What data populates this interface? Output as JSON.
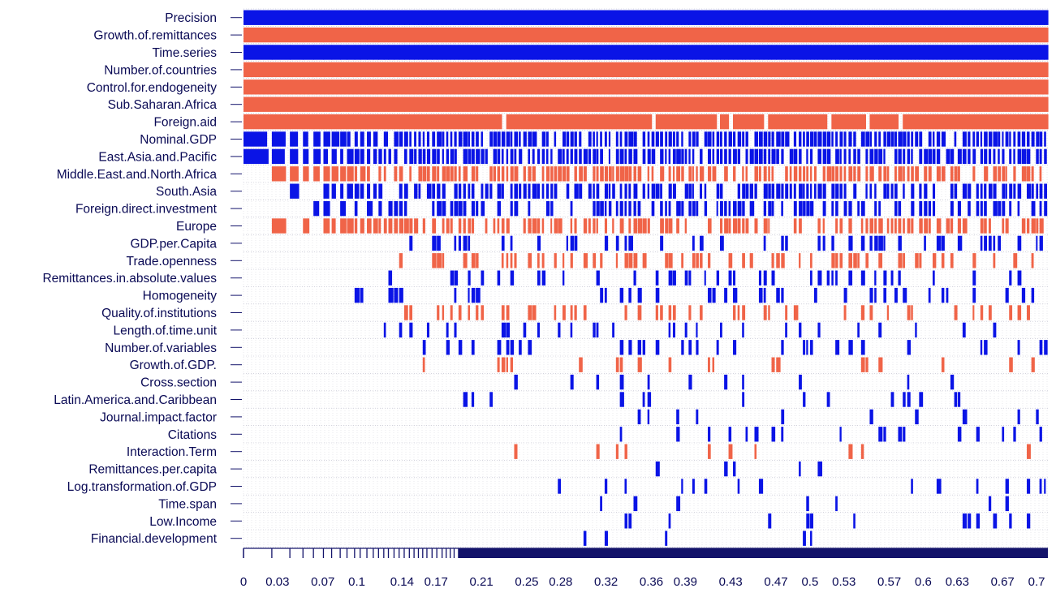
{
  "chart_data": {
    "type": "heatmap",
    "title": "",
    "xlabel": "",
    "ylabel": "",
    "description_colors": {
      "positive": "#0a14e6",
      "negative": "#f06448",
      "axis": "#13136a"
    },
    "variables": [
      "Precision",
      "Growth.of.remittances",
      "Time.series",
      "Number.of.countries",
      "Control.for.endogeneity",
      "Sub.Saharan.Africa",
      "Foreign.aid",
      "Nominal.GDP",
      "East.Asia.and.Pacific",
      "Middle.East.and.North.Africa",
      "South.Asia",
      "Foreign.direct.investment",
      "Europe",
      "GDP.per.Capita",
      "Trade.openness",
      "Remittances.in.absolute.values",
      "Homogeneity",
      "Quality.of.institutions",
      "Length.of.time.unit",
      "Number.of.variables",
      "Growth.of.GDP.",
      "Cross.section",
      "Latin.America.and.Caribbean",
      "Journal.impact.factor",
      "Citations",
      "Interaction.Term",
      "Remittances.per.capita",
      "Log.transformation.of.GDP",
      "Time.span",
      "Low.Income",
      "Financial.development"
    ],
    "x_tick_labels": [
      "0",
      "0.03",
      "0.07",
      "0.1",
      "0.14",
      "0.17",
      "0.21",
      "0.25",
      "0.28",
      "0.32",
      "0.36",
      "0.39",
      "0.43",
      "0.47",
      "0.5",
      "0.53",
      "0.57",
      "0.6",
      "0.63",
      "0.67",
      "0.7"
    ],
    "x_ticks": [
      0,
      0.03,
      0.07,
      0.1,
      0.14,
      0.17,
      0.21,
      0.25,
      0.28,
      0.32,
      0.36,
      0.39,
      0.43,
      0.47,
      0.5,
      0.53,
      0.57,
      0.6,
      0.63,
      0.67,
      0.7
    ],
    "xlim": [
      0,
      0.71
    ],
    "inclusion_profile": [
      {
        "sign": "positive",
        "start": 0.0,
        "density": 1.0
      },
      {
        "sign": "negative",
        "start": 0.0,
        "density": 1.0
      },
      {
        "sign": "positive",
        "start": 0.0,
        "density": 1.0
      },
      {
        "sign": "negative",
        "start": 0.0,
        "density": 1.0
      },
      {
        "sign": "negative",
        "start": 0.0,
        "density": 1.0
      },
      {
        "sign": "negative",
        "start": 0.0,
        "density": 0.99
      },
      {
        "sign": "negative",
        "start": 0.0,
        "density": 0.95
      },
      {
        "sign": "positive",
        "start": 0.0,
        "density": 0.9
      },
      {
        "sign": "positive",
        "start": 0.0,
        "density": 0.82
      },
      {
        "sign": "negative",
        "start": 0.0,
        "density": 0.78
      },
      {
        "sign": "positive",
        "start": 0.0,
        "density": 0.7
      },
      {
        "sign": "positive",
        "start": 0.02,
        "density": 0.6
      },
      {
        "sign": "negative",
        "start": 0.02,
        "density": 0.55
      },
      {
        "sign": "positive",
        "start": 0.1,
        "density": 0.3
      },
      {
        "sign": "negative",
        "start": 0.13,
        "density": 0.28
      },
      {
        "sign": "positive",
        "start": 0.12,
        "density": 0.27
      },
      {
        "sign": "positive",
        "start": 0.09,
        "density": 0.24
      },
      {
        "sign": "negative",
        "start": 0.13,
        "density": 0.24
      },
      {
        "sign": "positive",
        "start": 0.09,
        "density": 0.2
      },
      {
        "sign": "positive",
        "start": 0.14,
        "density": 0.17
      },
      {
        "sign": "negative",
        "start": 0.12,
        "density": 0.16
      },
      {
        "sign": "positive",
        "start": 0.17,
        "density": 0.14
      },
      {
        "sign": "positive",
        "start": 0.19,
        "density": 0.12
      },
      {
        "sign": "positive",
        "start": 0.22,
        "density": 0.1
      },
      {
        "sign": "positive",
        "start": 0.22,
        "density": 0.09
      },
      {
        "sign": "negative",
        "start": 0.22,
        "density": 0.09
      },
      {
        "sign": "positive",
        "start": 0.25,
        "density": 0.08
      },
      {
        "sign": "positive",
        "start": 0.26,
        "density": 0.07
      },
      {
        "sign": "positive",
        "start": 0.3,
        "density": 0.06
      },
      {
        "sign": "positive",
        "start": 0.33,
        "density": 0.05
      },
      {
        "sign": "positive",
        "start": 0.27,
        "density": 0.04
      }
    ]
  }
}
